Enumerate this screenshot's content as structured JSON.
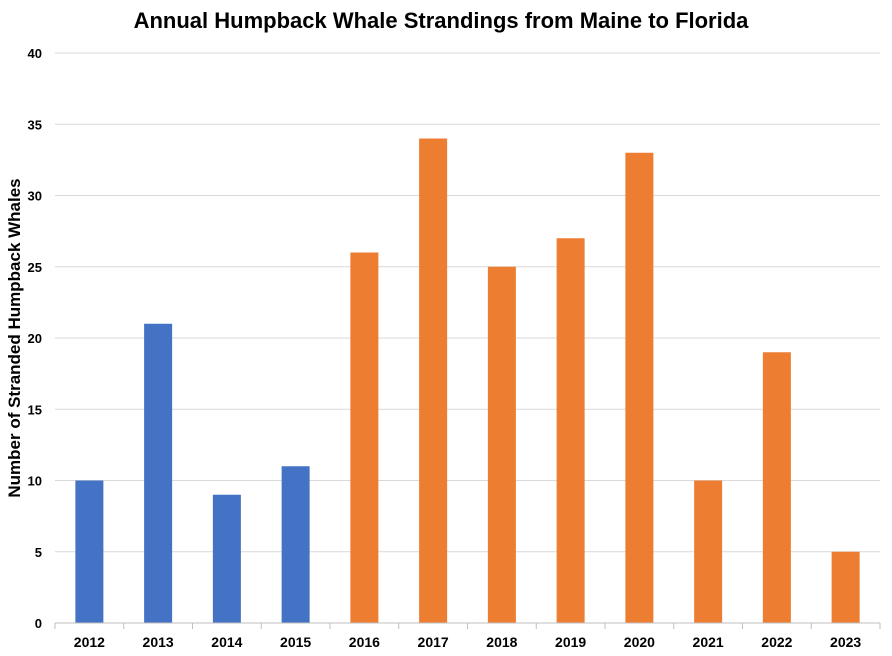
{
  "chart_data": {
    "type": "bar",
    "title": "Annual Humpback Whale Strandings from Maine to Florida",
    "xlabel": "",
    "ylabel": "Number of Stranded Humpback Whales",
    "categories": [
      "2012",
      "2013",
      "2014",
      "2015",
      "2016",
      "2017",
      "2018",
      "2019",
      "2020",
      "2021",
      "2022",
      "2023"
    ],
    "values": [
      10,
      21,
      9,
      11,
      26,
      34,
      25,
      27,
      33,
      10,
      19,
      5
    ],
    "bar_colors": [
      "#4472C4",
      "#4472C4",
      "#4472C4",
      "#4472C4",
      "#ED7D31",
      "#ED7D31",
      "#ED7D31",
      "#ED7D31",
      "#ED7D31",
      "#ED7D31",
      "#ED7D31",
      "#ED7D31"
    ],
    "ylim": [
      0,
      40
    ],
    "yticks": [
      0,
      5,
      10,
      15,
      20,
      25,
      30,
      35,
      40
    ],
    "grid": true,
    "legend": "none"
  }
}
